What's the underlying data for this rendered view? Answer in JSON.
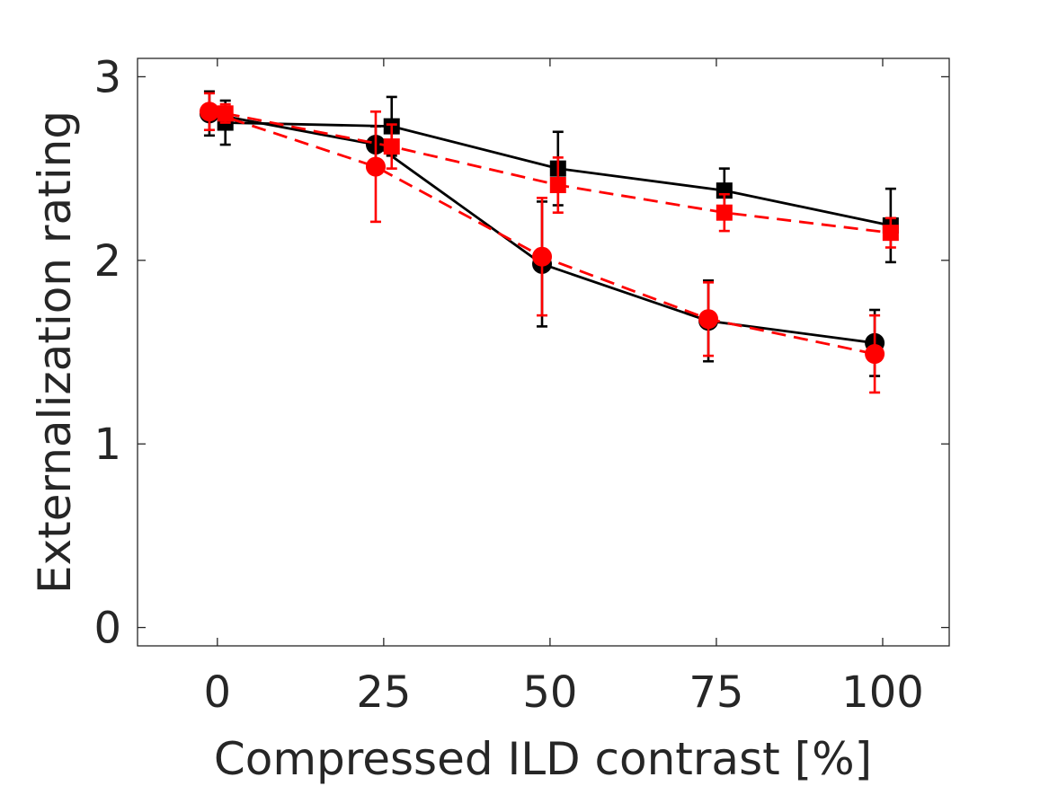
{
  "chart_data": {
    "type": "line",
    "xlabel": "Compressed ILD contrast [%]",
    "ylabel": "Externalization rating",
    "xlim": [
      -12,
      110
    ],
    "ylim": [
      -0.1,
      3.1
    ],
    "xticks": [
      0,
      25,
      50,
      75,
      100
    ],
    "yticks": [
      0,
      1,
      2,
      3
    ],
    "grid": false,
    "legend": "none",
    "series": [
      {
        "color": "#000000",
        "line": "solid",
        "marker": "circle",
        "x": [
          -1.2,
          23.8,
          48.8,
          73.8,
          98.8
        ],
        "y": [
          2.8,
          2.63,
          1.98,
          1.67,
          1.55
        ],
        "err": [
          0.12,
          0.1,
          0.34,
          0.22,
          0.18
        ]
      },
      {
        "color": "#000000",
        "line": "solid",
        "marker": "square",
        "x": [
          1.2,
          26.2,
          51.2,
          76.2,
          101.2
        ],
        "y": [
          2.75,
          2.73,
          2.5,
          2.38,
          2.19
        ],
        "err": [
          0.12,
          0.16,
          0.2,
          0.12,
          0.2
        ]
      },
      {
        "color": "#ff0000",
        "line": "dashed",
        "marker": "circle",
        "x": [
          -1.2,
          23.8,
          48.8,
          73.8,
          98.8
        ],
        "y": [
          2.81,
          2.51,
          2.02,
          1.68,
          1.49
        ],
        "err": [
          0.1,
          0.3,
          0.32,
          0.2,
          0.21
        ]
      },
      {
        "color": "#ff0000",
        "line": "dashed",
        "marker": "square",
        "x": [
          1.2,
          26.2,
          51.2,
          76.2,
          101.2
        ],
        "y": [
          2.8,
          2.62,
          2.41,
          2.26,
          2.15
        ],
        "err": [
          0.05,
          0.12,
          0.15,
          0.1,
          0.08
        ]
      }
    ]
  }
}
